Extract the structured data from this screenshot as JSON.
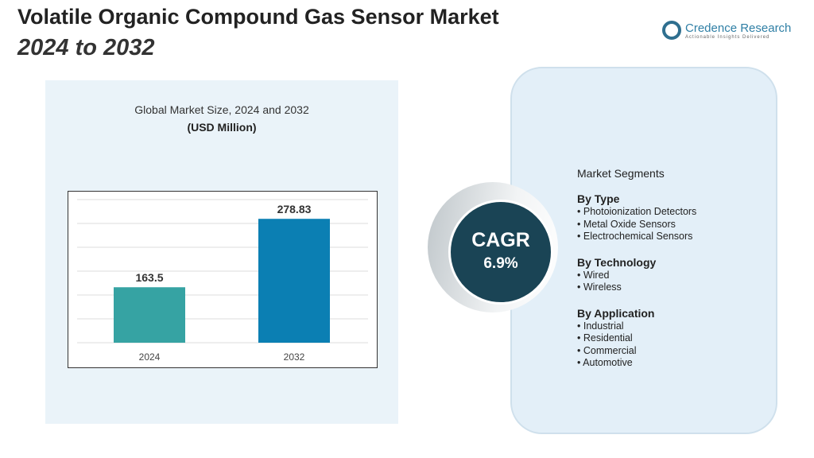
{
  "title": "Volatile Organic Compound Gas Sensor Market",
  "subtitle": "2024 to 2032",
  "logo": {
    "name": "Credence Research",
    "tagline": "Actionable Insights Delivered"
  },
  "cagr": {
    "label": "CAGR",
    "value": "6.9%"
  },
  "segments": {
    "heading": "Market Segments",
    "groups": [
      {
        "title": "By Type",
        "items": [
          "Photoionization Detectors",
          "Metal Oxide Sensors",
          "Electrochemical Sensors"
        ]
      },
      {
        "title": "By Technology",
        "items": [
          "Wired",
          "Wireless"
        ]
      },
      {
        "title": "By Application",
        "items": [
          "Industrial",
          "Residential",
          "Commercial",
          "Automotive"
        ]
      }
    ]
  },
  "chart_data": {
    "type": "bar",
    "title": "Global Market Size, 2024 and 2032",
    "unit": "(USD Million)",
    "categories": [
      "2024",
      "2032"
    ],
    "values": [
      163.5,
      278.83
    ],
    "labels": [
      "163.5",
      "278.83"
    ],
    "colors": [
      "#36a3a3",
      "#0b7fb3"
    ],
    "grid": true,
    "legend": "none"
  }
}
